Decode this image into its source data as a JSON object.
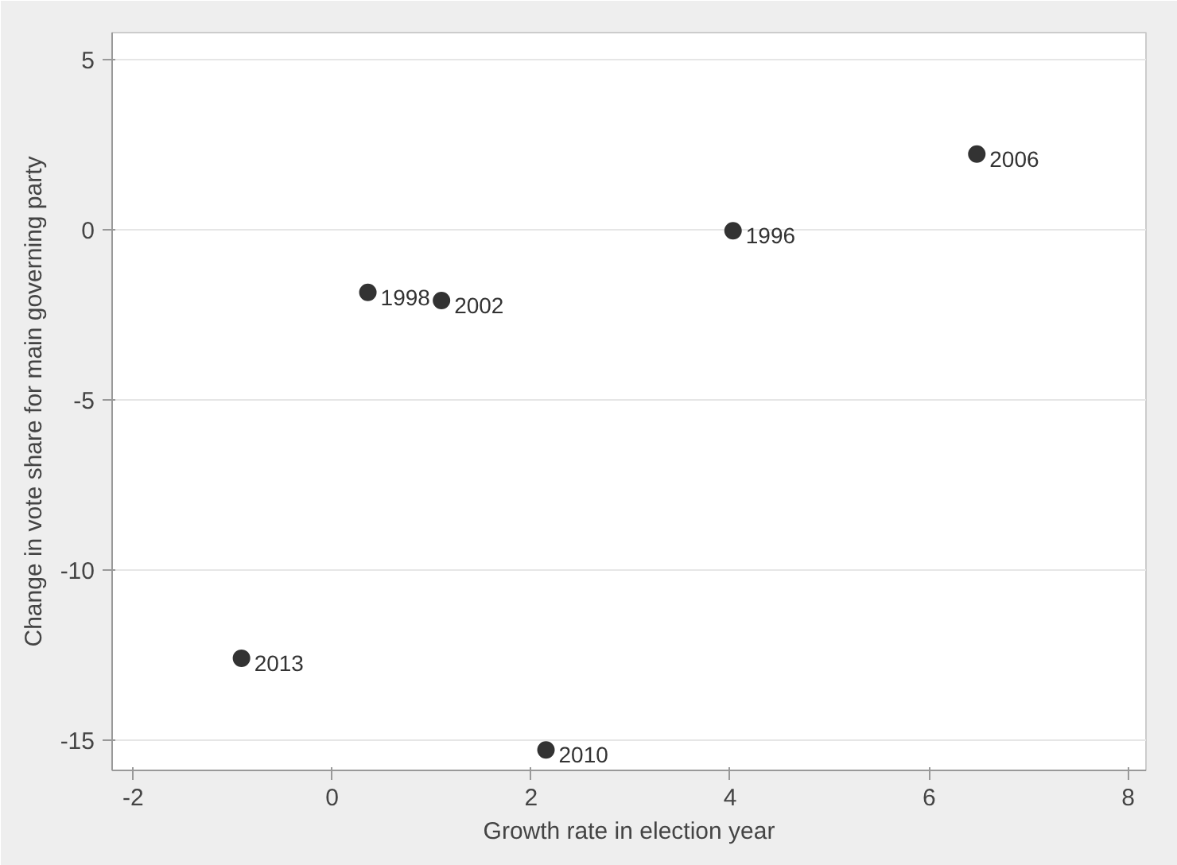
{
  "chart_data": {
    "type": "scatter",
    "xlabel": "Growth rate in election year",
    "ylabel": "Change in vote share for main governing party",
    "x": [
      0.36,
      1.1,
      -0.91,
      2.15,
      4.03,
      6.48
    ],
    "series": [
      {
        "color": "#333333",
        "values": [
          -1.84,
          -2.08,
          -12.6,
          -15.3,
          -0.03,
          2.23
        ]
      }
    ],
    "annotations": [
      {
        "text": "1998",
        "x": 0.36,
        "y": -1.84
      },
      {
        "text": "2002",
        "x": 1.1,
        "y": -2.08
      },
      {
        "text": "2013",
        "x": -0.91,
        "y": -12.6
      },
      {
        "text": "2010",
        "x": 2.15,
        "y": -15.3
      },
      {
        "text": "1996",
        "x": 4.03,
        "y": -0.03
      },
      {
        "text": "2006",
        "x": 6.48,
        "y": 2.23
      }
    ],
    "xlim": [
      -2.21,
      8.18
    ],
    "ylim": [
      -15.9,
      5.8
    ],
    "xticks": [
      -2,
      0,
      2,
      4,
      6,
      8
    ],
    "yticks": [
      -15,
      -10,
      -5,
      0,
      5
    ],
    "grid": "y",
    "marker": "circle"
  }
}
